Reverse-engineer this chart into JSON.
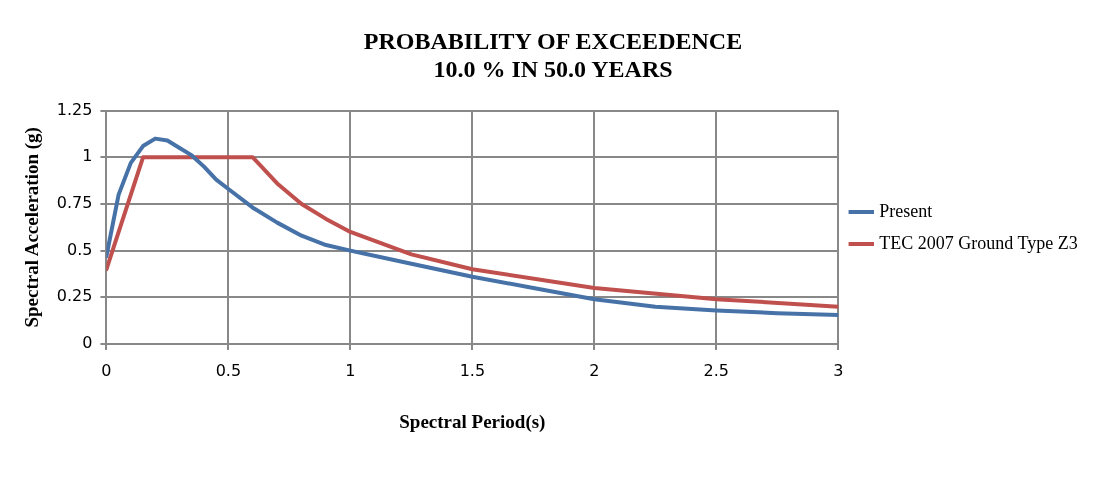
{
  "chart_data": {
    "type": "line",
    "title": "PROBABILITY OF EXCEEDENCE\n10.0 % IN 50.0 YEARS",
    "xlabel": "Spectral Period(s)",
    "ylabel": "Spectral Acceleration (g)",
    "series": [
      {
        "name": "Present",
        "color": "#4672a8",
        "x": [
          0,
          0.05,
          0.1,
          0.15,
          0.2,
          0.25,
          0.3,
          0.35,
          0.4,
          0.45,
          0.5,
          0.6,
          0.7,
          0.8,
          0.9,
          1.0,
          1.25,
          1.5,
          1.75,
          2.0,
          2.25,
          2.5,
          2.75,
          3.0
        ],
        "values": [
          0.47,
          0.8,
          0.97,
          1.06,
          1.1,
          1.09,
          1.05,
          1.01,
          0.95,
          0.88,
          0.83,
          0.73,
          0.65,
          0.58,
          0.53,
          0.5,
          0.43,
          0.36,
          0.3,
          0.24,
          0.2,
          0.18,
          0.165,
          0.155
        ]
      },
      {
        "name": "TEC 2007 Ground Type Z3",
        "color": "#c0504d",
        "x": [
          0,
          0.15,
          0.6,
          0.7,
          0.8,
          0.9,
          1.0,
          1.25,
          1.5,
          2.0,
          2.5,
          3.0
        ],
        "values": [
          0.4,
          1,
          1,
          0.86,
          0.75,
          0.67,
          0.6,
          0.48,
          0.4,
          0.3,
          0.24,
          0.2
        ]
      }
    ],
    "xlim": [
      0,
      3
    ],
    "xticks": [
      0,
      0.5,
      1,
      1.5,
      2,
      2.5,
      3
    ],
    "ylim": [
      0,
      1.25
    ],
    "yticks": [
      0,
      0.25,
      0.5,
      0.75,
      1,
      1.25
    ],
    "grid": true,
    "legend": "right",
    "marker": "none",
    "line_style": "solid"
  }
}
